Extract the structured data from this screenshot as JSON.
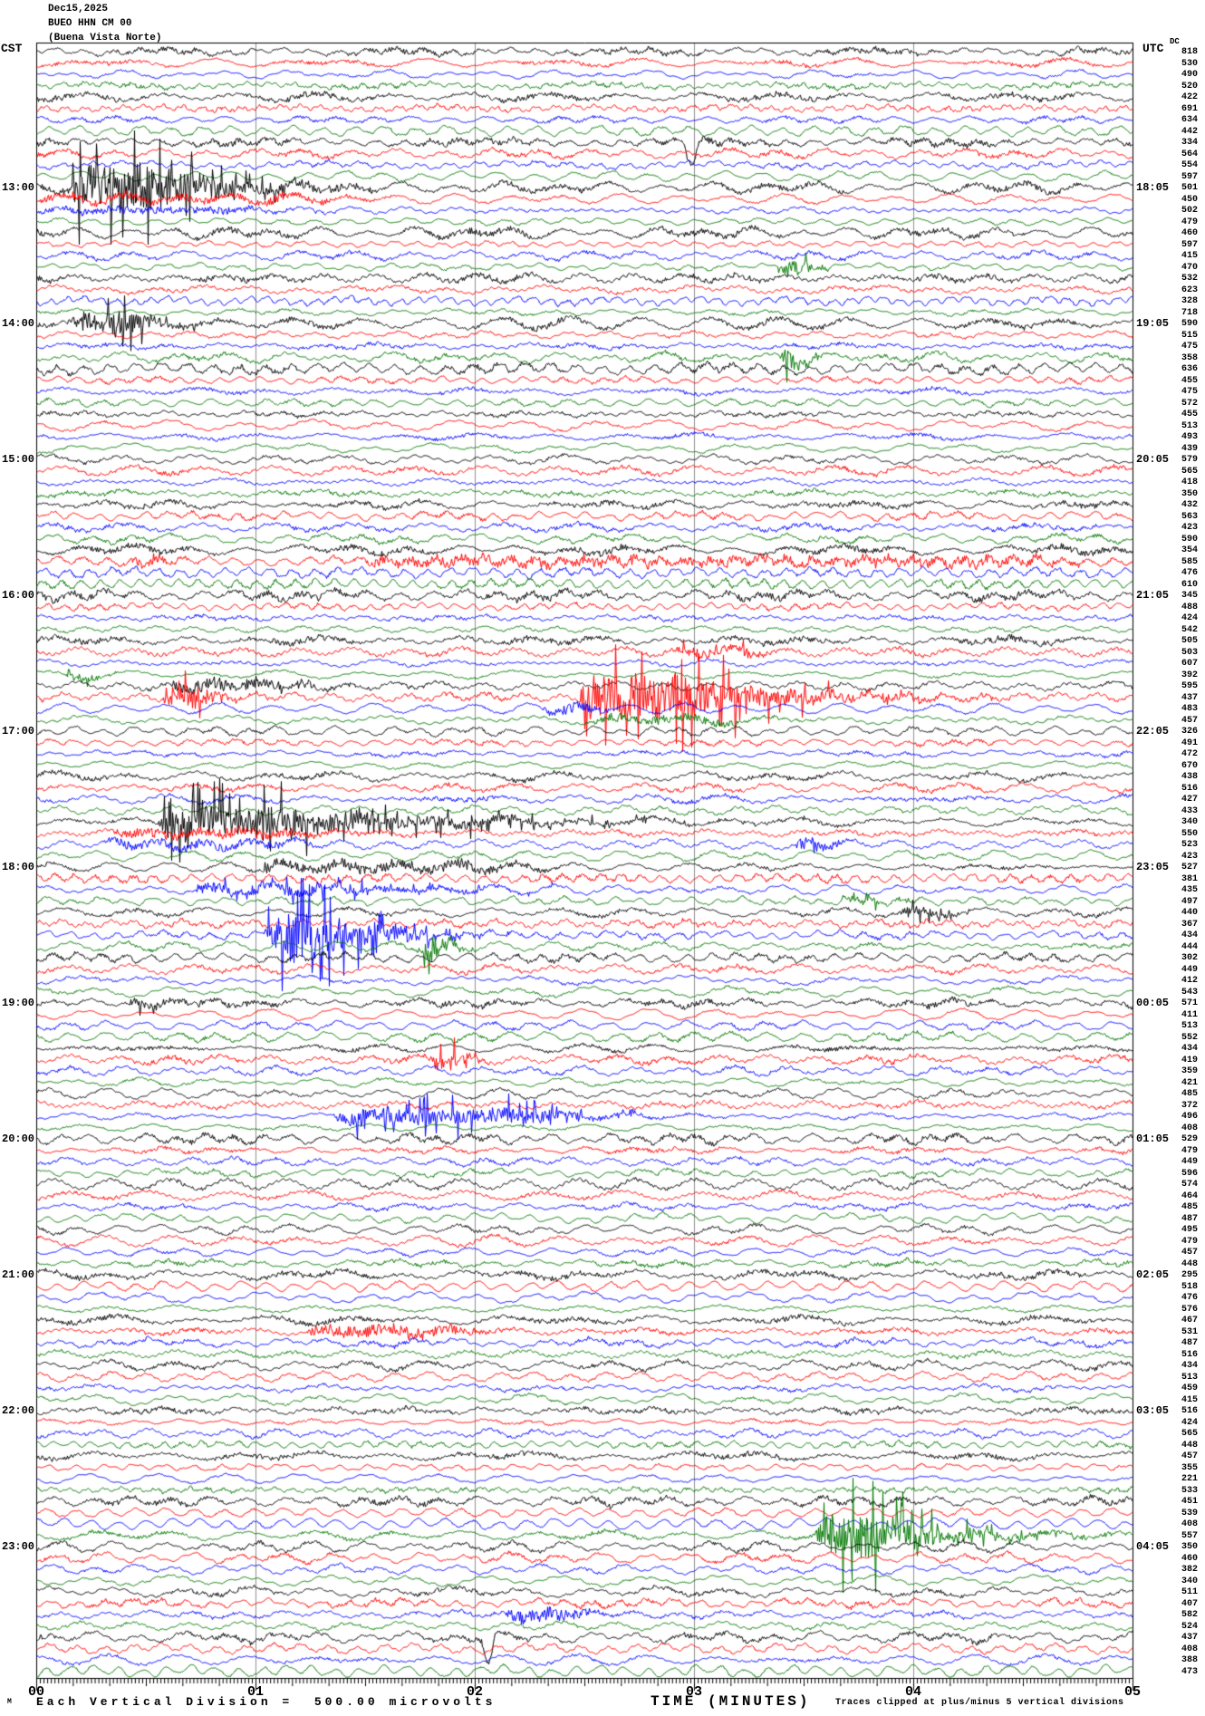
{
  "header": {
    "date": "Dec15,2025",
    "station": "BUEO HHN CM 00",
    "station_name": "(Buena Vista Norte)",
    "left_tz": "CST",
    "right_tz": "UTC",
    "dc_label": "DC"
  },
  "left_time_labels": [
    "13:00",
    "14:00",
    "15:00",
    "16:00",
    "17:00",
    "18:00",
    "19:00",
    "20:00",
    "21:00",
    "22:00",
    "23:00"
  ],
  "right_time_labels": [
    "18:05",
    "19:05",
    "20:05",
    "21:05",
    "22:05",
    "23:05",
    "00:05",
    "01:05",
    "02:05",
    "03:05",
    "04:05"
  ],
  "x_axis": {
    "title": "TIME (MINUTES)",
    "tick_labels": [
      "00",
      "01",
      "02",
      "03",
      "04",
      "05"
    ],
    "clip_note": "Traces clipped at plus/minus 5 vertical divisions"
  },
  "footer": {
    "scale_marker": "M",
    "scale_text": "Each Vertical Division =  500.00 microvolts"
  },
  "colors": {
    "trace_cycle": [
      "#000000",
      "#ff0000",
      "#0000ff",
      "#007700"
    ],
    "grid": "#909090",
    "border": "#000000"
  },
  "chart_data": {
    "type": "line",
    "description": "Helicorder seismogram, 12 hours, one trace line per 5 minutes",
    "rows": 144,
    "minutes_per_row": 5,
    "traces_per_hour": 12,
    "first_row_local_time": "12:00",
    "division_microvolts": 500.0,
    "clip_divisions": 5,
    "seed": 1337,
    "dc_values": [
      818,
      530,
      490,
      520,
      422,
      691,
      634,
      442,
      334,
      564,
      554,
      597,
      501,
      450,
      502,
      479,
      460,
      597,
      415,
      470,
      532,
      623,
      328,
      718,
      590,
      515,
      475,
      358,
      636,
      455,
      475,
      572,
      455,
      513,
      493,
      439,
      579,
      565,
      418,
      350,
      432,
      563,
      423,
      590,
      354,
      585,
      476,
      610,
      345,
      488,
      424,
      542,
      505,
      503,
      607,
      392,
      595,
      437,
      483,
      457,
      326,
      491,
      472,
      670,
      438,
      516,
      427,
      433,
      340,
      550,
      523,
      423,
      527,
      381,
      435,
      497,
      440,
      367,
      434,
      444,
      302,
      449,
      412,
      543,
      571,
      411,
      513,
      552,
      434,
      419,
      359,
      421,
      485,
      372,
      496,
      408,
      529,
      479,
      449,
      596,
      574,
      464,
      485,
      487,
      495,
      479,
      457,
      448,
      295,
      518,
      476,
      576,
      467,
      531,
      487,
      516,
      434,
      513,
      459,
      415,
      516,
      424,
      565,
      448,
      457,
      355,
      221,
      533,
      451,
      539,
      408,
      557,
      350,
      460,
      382,
      340,
      511,
      407,
      582,
      524,
      437,
      408,
      388,
      473
    ],
    "events": [
      {
        "row": 8,
        "start": 2.95,
        "end": 3.02,
        "amp": 24,
        "kind": "spikedown"
      },
      {
        "row": 12,
        "start": 0.15,
        "end": 0.5,
        "amp": 63,
        "kind": "eq",
        "tau": 0.35
      },
      {
        "row": 13,
        "start": 0.0,
        "end": 1.2,
        "amp": 6,
        "kind": "hf",
        "tau": 0.3
      },
      {
        "row": 14,
        "start": 0.0,
        "end": 0.9,
        "amp": 5,
        "kind": "hf",
        "tau": 0.3
      },
      {
        "row": 19,
        "start": 3.38,
        "end": 3.48,
        "amp": 20,
        "kind": "burst",
        "tau": 0.06
      },
      {
        "row": 24,
        "start": 0.16,
        "end": 0.42,
        "amp": 26,
        "kind": "eq",
        "tau": 0.2
      },
      {
        "row": 27,
        "start": 3.38,
        "end": 3.47,
        "amp": 24,
        "kind": "burst",
        "tau": 0.05
      },
      {
        "row": 45,
        "start": 0.42,
        "end": 0.55,
        "amp": 8,
        "kind": "burst",
        "tau": 0.1
      },
      {
        "row": 45,
        "start": 1.5,
        "end": 4.55,
        "amp": 7,
        "kind": "hf",
        "tau": 0.2
      },
      {
        "row": 53,
        "start": 2.9,
        "end": 3.25,
        "amp": 9,
        "kind": "burst",
        "tau": 0.15
      },
      {
        "row": 55,
        "start": 0.12,
        "end": 0.25,
        "amp": 8,
        "kind": "burst",
        "tau": 0.08
      },
      {
        "row": 56,
        "start": 0.6,
        "end": 1.15,
        "amp": 9,
        "kind": "hf",
        "tau": 0.2
      },
      {
        "row": 57,
        "start": 0.57,
        "end": 0.73,
        "amp": 26,
        "kind": "burst",
        "tau": 0.08
      },
      {
        "row": 57,
        "start": 2.48,
        "end": 2.92,
        "amp": 63,
        "kind": "eq",
        "tau": 0.45
      },
      {
        "row": 58,
        "start": 2.3,
        "end": 2.52,
        "amp": 8,
        "kind": "hf",
        "tau": 0.1
      },
      {
        "row": 59,
        "start": 2.5,
        "end": 3.1,
        "amp": 6,
        "kind": "hf",
        "tau": 0.2
      },
      {
        "row": 68,
        "start": 0.55,
        "end": 1.05,
        "amp": 38,
        "kind": "eq",
        "tau": 0.8
      },
      {
        "row": 69,
        "start": 0.35,
        "end": 1.1,
        "amp": 7,
        "kind": "hf",
        "tau": 0.3
      },
      {
        "row": 70,
        "start": 0.3,
        "end": 1.1,
        "amp": 6,
        "kind": "hf",
        "tau": 0.2
      },
      {
        "row": 70,
        "start": 3.45,
        "end": 3.62,
        "amp": 9,
        "kind": "burst",
        "tau": 0.1
      },
      {
        "row": 72,
        "start": 1.0,
        "end": 2.0,
        "amp": 8,
        "kind": "hf",
        "tau": 0.2
      },
      {
        "row": 74,
        "start": 0.72,
        "end": 1.5,
        "amp": 12,
        "kind": "eq",
        "tau": 0.5
      },
      {
        "row": 75,
        "start": 3.67,
        "end": 3.82,
        "amp": 10,
        "kind": "burst",
        "tau": 0.1
      },
      {
        "row": 76,
        "start": 3.93,
        "end": 4.1,
        "amp": 10,
        "kind": "burst",
        "tau": 0.1
      },
      {
        "row": 78,
        "start": 1.04,
        "end": 1.25,
        "amp": 65,
        "kind": "eq",
        "tau": 0.3
      },
      {
        "row": 79,
        "start": 1.74,
        "end": 1.86,
        "amp": 26,
        "kind": "burst",
        "tau": 0.06
      },
      {
        "row": 84,
        "start": 0.4,
        "end": 0.52,
        "amp": 12,
        "kind": "burst",
        "tau": 0.08
      },
      {
        "row": 89,
        "start": 1.78,
        "end": 1.9,
        "amp": 22,
        "kind": "burst",
        "tau": 0.07
      },
      {
        "row": 94,
        "start": 1.35,
        "end": 2.25,
        "amp": 20,
        "kind": "eq",
        "tau": 0.3
      },
      {
        "row": 113,
        "start": 1.22,
        "end": 1.82,
        "amp": 9,
        "kind": "hf",
        "tau": 0.2
      },
      {
        "row": 131,
        "start": 3.55,
        "end": 3.78,
        "amp": 58,
        "kind": "eq",
        "tau": 0.35
      },
      {
        "row": 138,
        "start": 2.13,
        "end": 2.42,
        "amp": 10,
        "kind": "hf",
        "tau": 0.15
      },
      {
        "row": 140,
        "start": 2.03,
        "end": 2.09,
        "amp": 30,
        "kind": "spikedown"
      }
    ]
  }
}
